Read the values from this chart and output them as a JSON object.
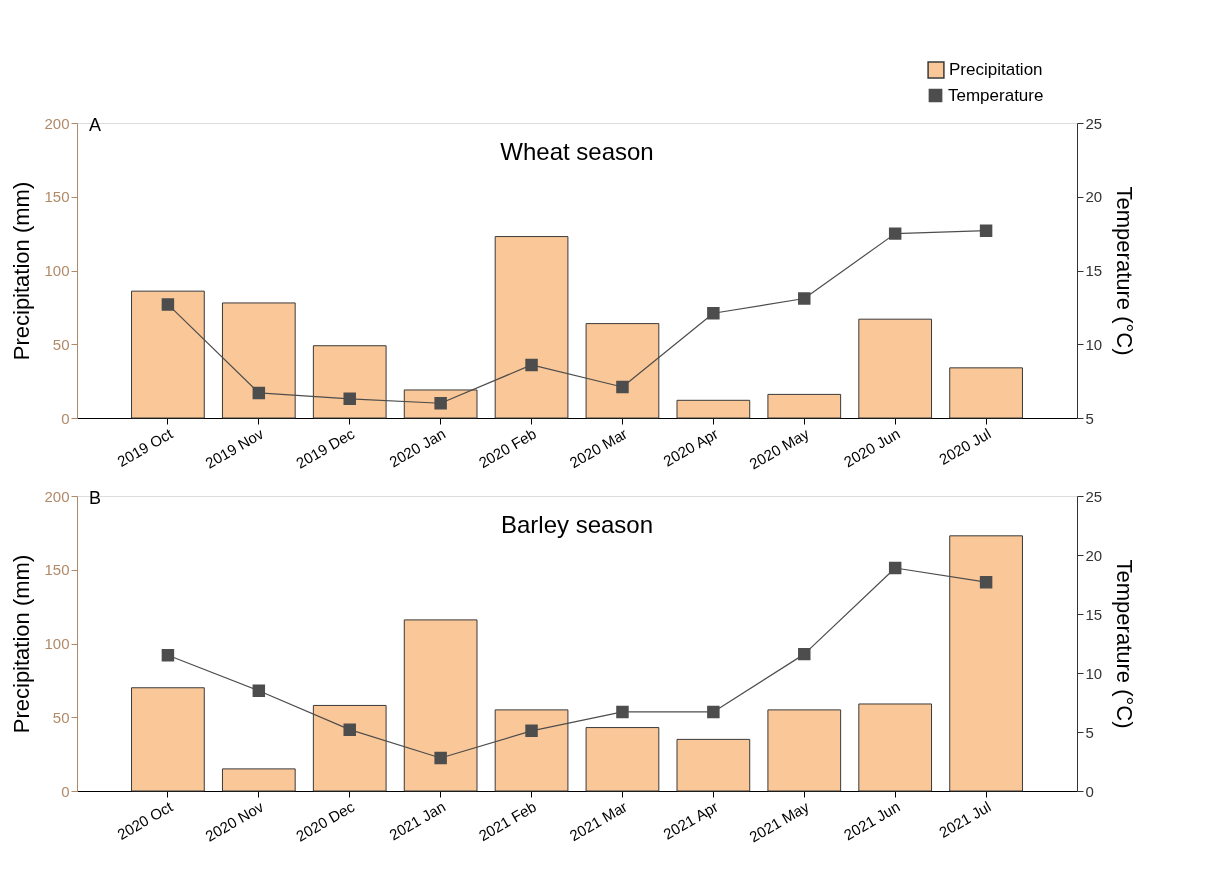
{
  "chart_data": [
    {
      "type": "bar",
      "title": "Wheat season",
      "annotations": [
        "A"
      ],
      "ylabel": "Precipitation (mm)",
      "y2label": "Temperature (°C)",
      "categories": [
        "2019 Oct",
        "2019 Nov",
        "2019 Dec",
        "2020 Jan",
        "2020 Feb",
        "2020 Mar",
        "2020 Apr",
        "2020 May",
        "2020 Jun",
        "2020 Jul"
      ],
      "series": [
        {
          "name": "Precipitation",
          "type": "bar",
          "color": "#fac898",
          "values": [
            86,
            78,
            49,
            19,
            123,
            64,
            12,
            16,
            67,
            34
          ]
        },
        {
          "name": "Temperature",
          "type": "line",
          "axis": "y2",
          "color": "#4d4d4d",
          "values": [
            12.7,
            6.7,
            6.3,
            6.0,
            8.6,
            7.1,
            12.1,
            13.1,
            17.5,
            17.7
          ]
        }
      ],
      "ylim": [
        0,
        200
      ],
      "yticks": [
        0,
        50,
        100,
        150,
        200
      ],
      "y2lim": [
        5,
        25
      ],
      "y2ticks": [
        5,
        10,
        15,
        20,
        25
      ],
      "marker": "square",
      "grid": false,
      "legend": "top right"
    },
    {
      "type": "bar",
      "title": "Barley season",
      "annotations": [
        "B"
      ],
      "ylabel": "Precipitation (mm)",
      "y2label": "Temperature (°C)",
      "categories": [
        "2020 Oct",
        "2020 Nov",
        "2020 Dec",
        "2021 Jan",
        "2021 Feb",
        "2021 Mar",
        "2021 Apr",
        "2021 May",
        "2021 Jun",
        "2021 Jul"
      ],
      "series": [
        {
          "type": "bar",
          "color": "#fac898",
          "values": [
            70,
            15,
            58,
            116,
            55,
            43,
            35,
            55,
            59,
            173
          ]
        },
        {
          "type": "line",
          "axis": "y2",
          "color": "#4d4d4d",
          "values": [
            11.5,
            8.5,
            5.2,
            2.8,
            5.1,
            6.7,
            6.7,
            11.6,
            18.9,
            17.7
          ]
        }
      ],
      "ylim": [
        0,
        200
      ],
      "yticks": [
        0,
        50,
        100,
        150,
        200
      ],
      "y2lim": [
        0,
        25
      ],
      "y2ticks": [
        0,
        5,
        10,
        15,
        20,
        25
      ],
      "marker": "square",
      "grid": false
    }
  ]
}
